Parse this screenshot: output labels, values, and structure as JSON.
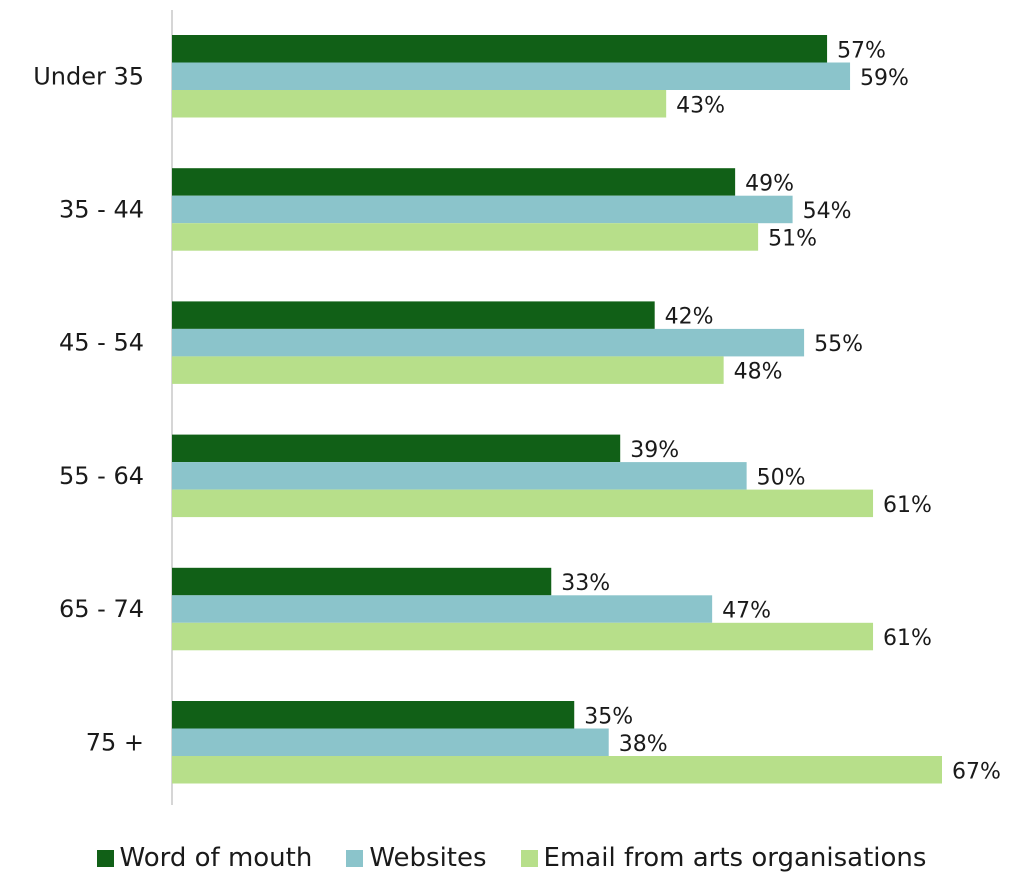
{
  "chart_data": {
    "type": "bar",
    "orientation": "horizontal",
    "title": "",
    "xlabel": "",
    "ylabel": "",
    "categories": [
      "Under 35",
      "35 - 44",
      "45 - 54",
      "55 - 64",
      "65 - 74",
      "75 +"
    ],
    "series": [
      {
        "name": "Word of mouth",
        "color": "#116017",
        "values": [
          57,
          49,
          42,
          39,
          33,
          35
        ]
      },
      {
        "name": "Websites",
        "color": "#8BC4CB",
        "values": [
          59,
          54,
          55,
          50,
          47,
          38
        ]
      },
      {
        "name": "Email from arts organisations",
        "color": "#B7DF8A",
        "values": [
          43,
          51,
          48,
          61,
          61,
          67
        ]
      }
    ],
    "value_suffix": "%",
    "xlim": [
      0,
      67
    ],
    "grid": false,
    "legend_position": "bottom"
  }
}
